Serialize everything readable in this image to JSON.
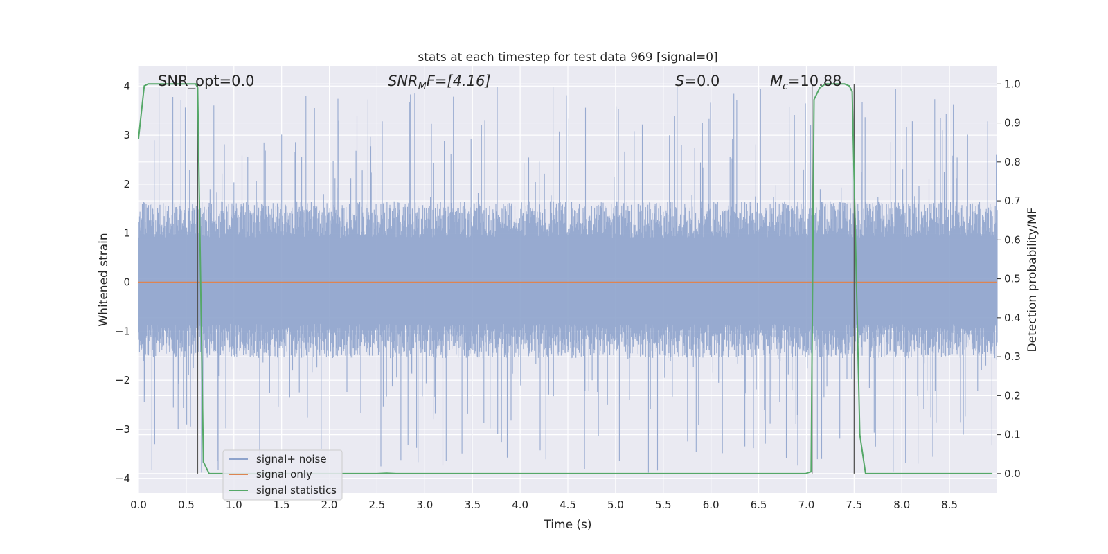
{
  "chart_data": {
    "type": "line",
    "title": "stats at each timestep for test data 969 [signal=0]",
    "xlabel": "Time (s)",
    "ylabel": "Whitened strain",
    "ylabel_right": "Detection probability/MF",
    "xlim": [
      0,
      9
    ],
    "ylim": [
      -4.3,
      4.4
    ],
    "ylim_right": [
      -0.05,
      1.045
    ],
    "x_ticks": [
      "0.0",
      "0.5",
      "1.0",
      "1.5",
      "2.0",
      "2.5",
      "3.0",
      "3.5",
      "4.0",
      "4.5",
      "5.0",
      "5.5",
      "6.0",
      "6.5",
      "7.0",
      "7.5",
      "8.0",
      "8.5"
    ],
    "x_tick_values": [
      0,
      0.5,
      1,
      1.5,
      2,
      2.5,
      3,
      3.5,
      4,
      4.5,
      5,
      5.5,
      6,
      6.5,
      7,
      7.5,
      8,
      8.5
    ],
    "y_ticks": [
      "4",
      "3",
      "2",
      "1",
      "0",
      "−1",
      "−2",
      "−3",
      "−4"
    ],
    "y_tick_values": [
      4,
      3,
      2,
      1,
      0,
      -1,
      -2,
      -3,
      -4
    ],
    "y_ticks_right": [
      "1.0",
      "0.9",
      "0.8",
      "0.7",
      "0.6",
      "0.5",
      "0.4",
      "0.3",
      "0.2",
      "0.1",
      "0.0"
    ],
    "y_tick_values_right": [
      1.0,
      0.9,
      0.8,
      0.7,
      0.6,
      0.5,
      0.4,
      0.3,
      0.2,
      0.1,
      0.0
    ],
    "grid": true,
    "legend_position": "lower-left",
    "annotations": {
      "snr_opt": "SNR_opt=0.0",
      "snr_mf_base": "SNR",
      "snr_mf_sub": "M",
      "snr_mf_rest": "F=[4.16]",
      "s_var": "S",
      "s_rest": "=0.0",
      "mc_base": "M",
      "mc_sub": "c",
      "mc_rest": "=10.88"
    },
    "series": [
      {
        "name": "signal+ noise",
        "color": "#8ea3cc",
        "envelope": {
          "upper_typical": 1.65,
          "lower_typical": -1.55,
          "upper_max": 4.0,
          "lower_min": -3.9
        }
      },
      {
        "name": "signal only",
        "color": "#dd8452",
        "values": [
          0,
          0
        ]
      },
      {
        "name": "signal statistics",
        "color": "#55a868",
        "x": [
          0.0,
          0.06,
          0.1,
          0.2,
          0.3,
          0.4,
          0.5,
          0.6,
          0.62,
          0.68,
          0.74,
          0.8,
          1.5,
          2.5,
          2.6,
          2.7,
          3.5,
          4.5,
          5.5,
          6.5,
          6.99,
          7.05,
          7.08,
          7.14,
          7.2,
          7.3,
          7.4,
          7.45,
          7.48,
          7.56,
          7.62,
          8.0,
          8.5,
          8.95
        ],
        "y": [
          0.86,
          0.995,
          1.0,
          1.0,
          1.0,
          1.0,
          1.0,
          1.0,
          0.99,
          0.03,
          0.0,
          0.0,
          0.0,
          0.0,
          0.001,
          0.0,
          0.0,
          0.0,
          0.0,
          0.0,
          0.0,
          0.005,
          0.96,
          0.99,
          1.0,
          1.0,
          1.0,
          0.995,
          0.98,
          0.1,
          0.0,
          0.0,
          0.0,
          0.0
        ]
      }
    ],
    "vertical_lines": [
      0.62,
      7.06,
      7.5
    ]
  }
}
